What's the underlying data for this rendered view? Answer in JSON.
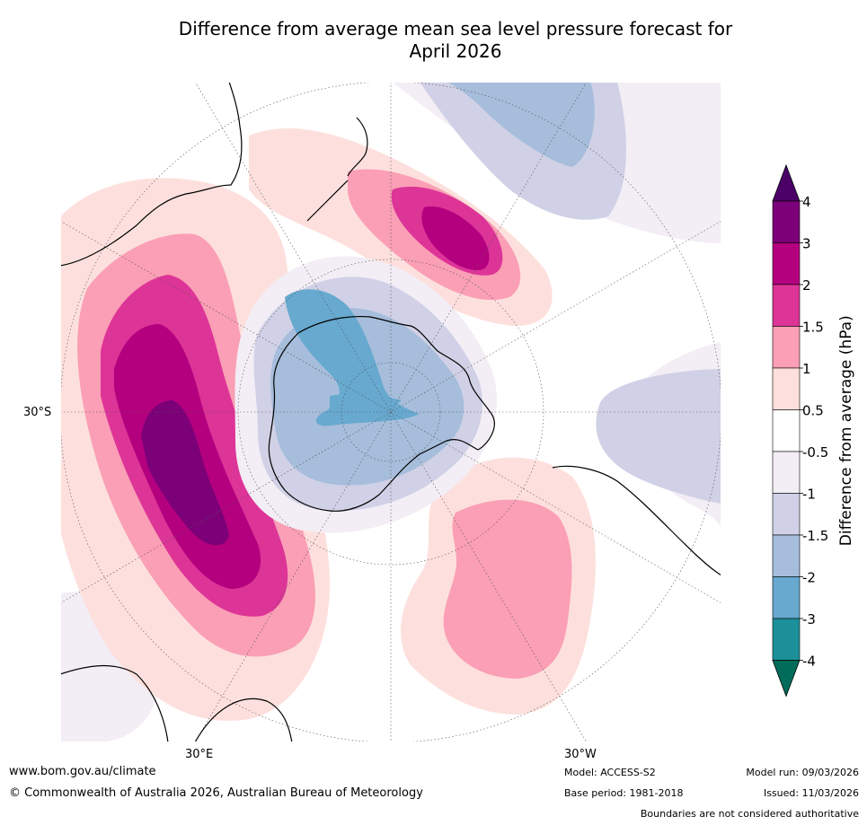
{
  "title_line1": "Difference from average mean sea level pressure forecast for",
  "title_line2": "April 2026",
  "axis_labels": {
    "lat": "30°S",
    "lon_e": "30°E",
    "lon_w": "30°W"
  },
  "colorbar": {
    "label": "Difference from average (hPa)",
    "ticks": [
      "4",
      "3",
      "2",
      "1.5",
      "1",
      "0.5",
      "-0.5",
      "-1",
      "-1.5",
      "-2",
      "-3",
      "-4"
    ],
    "colors": [
      "#4b0068",
      "#7c0078",
      "#b4007f",
      "#dd3497",
      "#fa9fb5",
      "#fde0dd",
      "#ffffff",
      "#f3edf5",
      "#d0d1e6",
      "#a6bddb",
      "#67a9cf",
      "#1c9099",
      "#016c59"
    ]
  },
  "footer": {
    "website": "www.bom.gov.au/climate",
    "copyright": "© Commonwealth of Australia 2026, Australian Bureau of Meteorology",
    "model": "Model: ACCESS-S2",
    "base_period": "Base period: 1981-2018",
    "model_run": "Model run: 09/03/2026",
    "issued": "Issued: 11/03/2026",
    "disclaimer": "Boundaries are not considered authoritative"
  }
}
